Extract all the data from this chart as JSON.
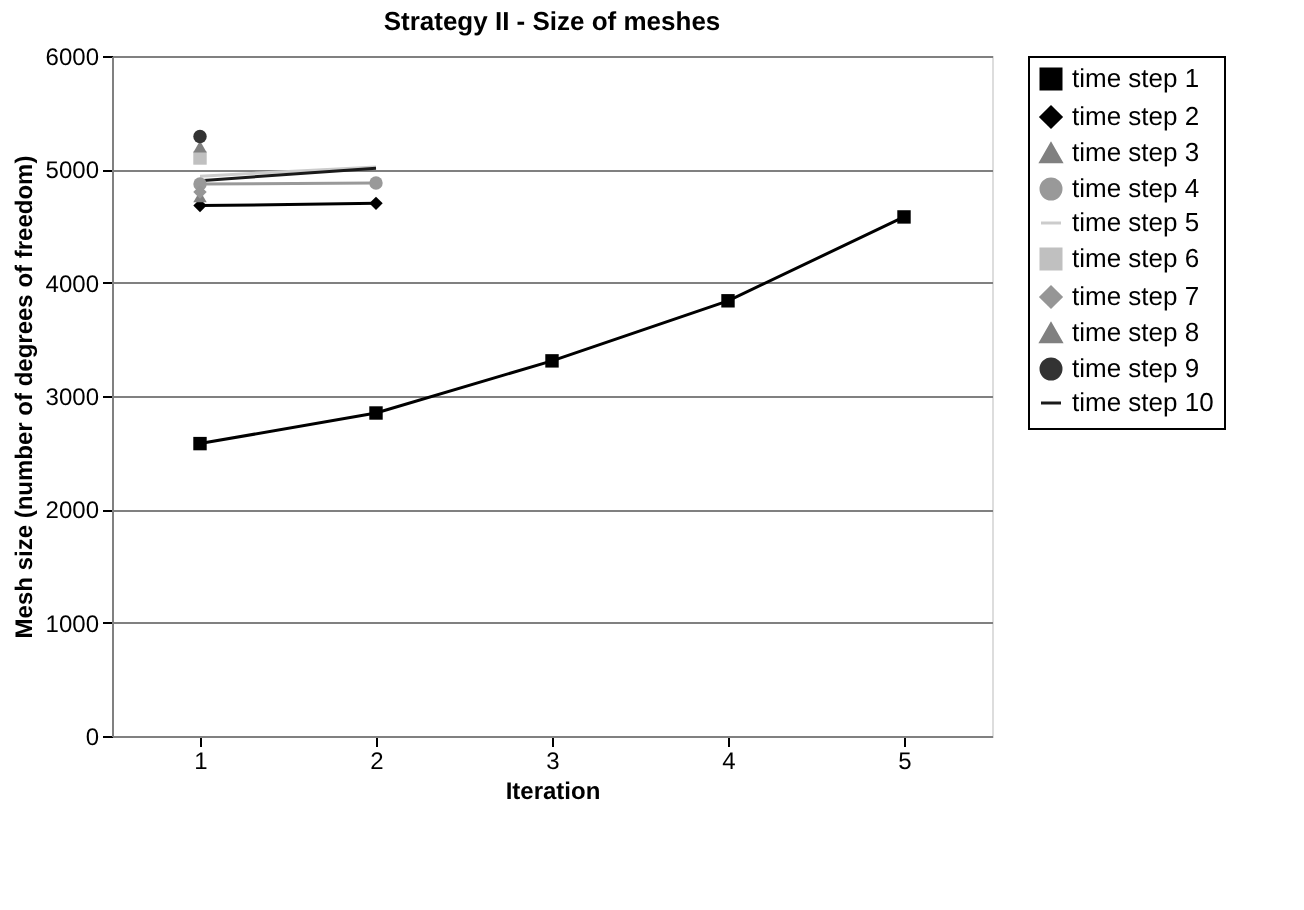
{
  "chart_data": {
    "type": "line",
    "title": "Strategy II - Size of meshes",
    "xlabel": "Iteration",
    "ylabel": "Mesh size (number of degrees of freedom)",
    "x": [
      1,
      2,
      3,
      4,
      5
    ],
    "series": [
      {
        "name": "time step 1",
        "color": "#000000",
        "marker": "square",
        "values": [
          2580,
          2850,
          3310,
          3840,
          4580
        ]
      },
      {
        "name": "time step 2",
        "color": "#000000",
        "marker": "diamond",
        "values": [
          4680,
          4700,
          null,
          null,
          null
        ]
      },
      {
        "name": "time step 3",
        "color": "#808080",
        "marker": "triangle",
        "values": [
          4760,
          null,
          null,
          null,
          null
        ]
      },
      {
        "name": "time step 4",
        "color": "#999999",
        "marker": "circle",
        "values": [
          4870,
          4880,
          null,
          null,
          null
        ]
      },
      {
        "name": "time step 5",
        "color": "#cccccc",
        "marker": "none",
        "values": [
          4940,
          5020,
          null,
          null,
          null
        ]
      },
      {
        "name": "time step 6",
        "color": "#c0c0c0",
        "marker": "square",
        "values": [
          5100,
          null,
          null,
          null,
          null
        ]
      },
      {
        "name": "time step 7",
        "color": "#969696",
        "marker": "diamond",
        "values": [
          4800,
          null,
          null,
          null,
          null
        ]
      },
      {
        "name": "time step 8",
        "color": "#808080",
        "marker": "triangle",
        "values": [
          5200,
          null,
          null,
          null,
          null
        ]
      },
      {
        "name": "time step 9",
        "color": "#333333",
        "marker": "circle",
        "values": [
          5290,
          null,
          null,
          null,
          null
        ]
      },
      {
        "name": "time step 10",
        "color": "#1a1a1a",
        "marker": "none",
        "values": [
          4900,
          5010,
          null,
          null,
          null
        ]
      }
    ],
    "xlim": [
      0.5,
      5.5
    ],
    "xticks": [
      1,
      2,
      3,
      4,
      5
    ],
    "ylim": [
      0,
      6000
    ],
    "yticks": [
      0,
      1000,
      2000,
      3000,
      4000,
      5000,
      6000
    ],
    "grid": "y",
    "legend": "right"
  }
}
